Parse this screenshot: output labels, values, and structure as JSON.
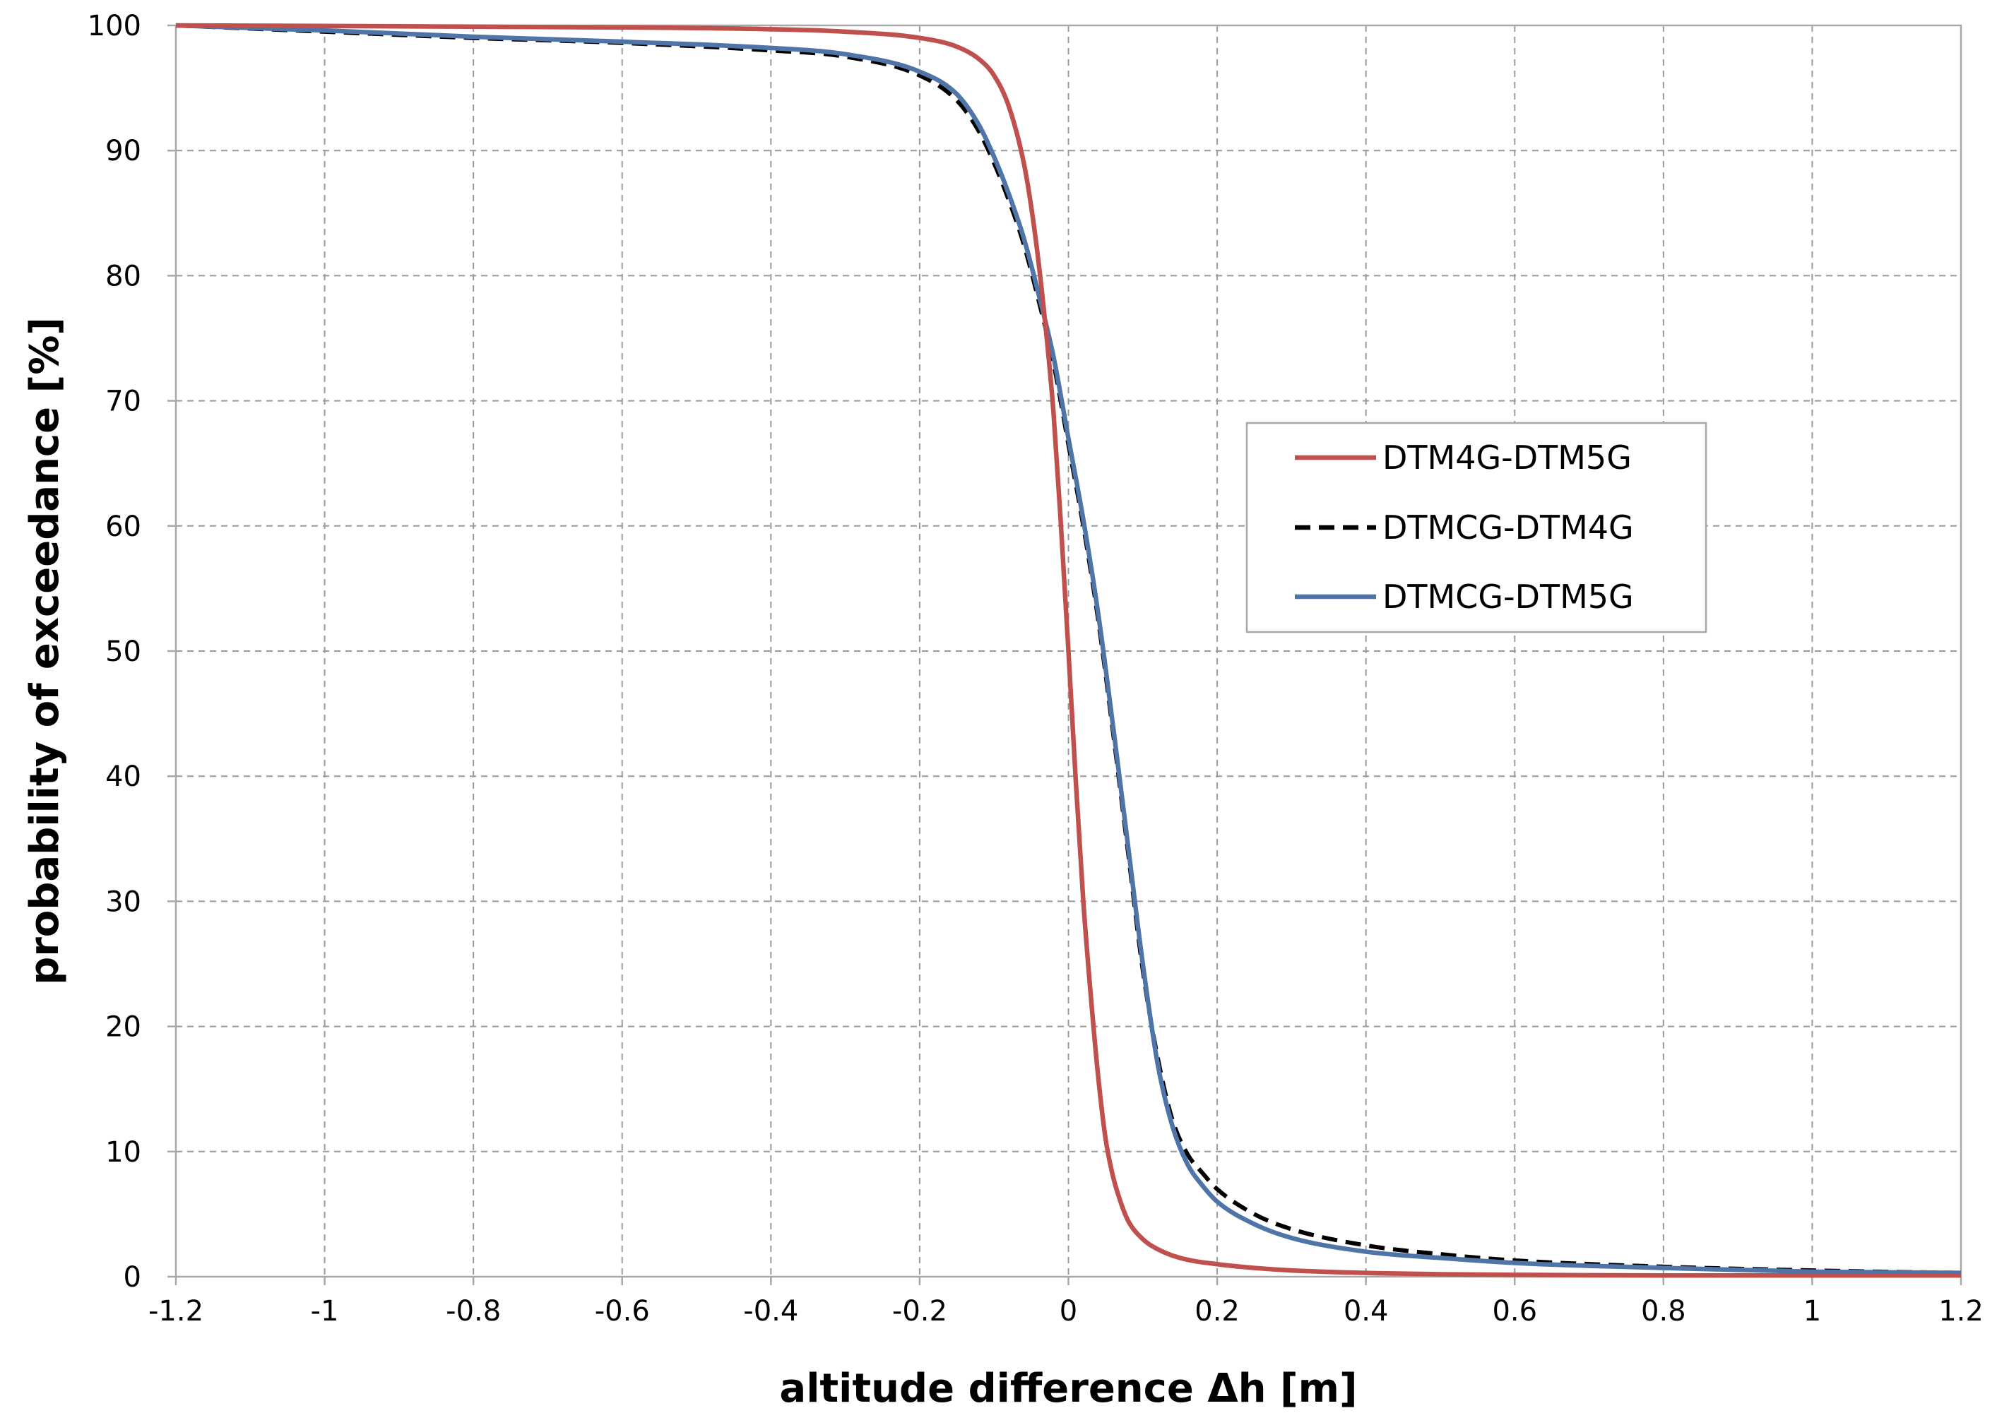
{
  "chart_data": {
    "type": "line",
    "title": "",
    "xlabel": "altitude difference Δh [m]",
    "ylabel": "probability of exceedance [%]",
    "xlim": [
      -1.2,
      1.2
    ],
    "ylim": [
      0,
      100
    ],
    "x_ticks": [
      "-1.2",
      "-1",
      "-0.8",
      "-0.6",
      "-0.4",
      "-0.2",
      "0",
      "0.2",
      "0.4",
      "0.6",
      "0.8",
      "1",
      "1.2"
    ],
    "y_ticks": [
      "0",
      "10",
      "20",
      "30",
      "40",
      "50",
      "60",
      "70",
      "80",
      "90",
      "100"
    ],
    "grid": true,
    "legend_position": "right",
    "series": [
      {
        "name": "DTM4G-DTM5G",
        "color": "#c0504d",
        "dash": "solid",
        "x": [
          -1.2,
          -0.8,
          -0.4,
          -0.3,
          -0.2,
          -0.15,
          -0.12,
          -0.1,
          -0.08,
          -0.06,
          -0.05,
          -0.04,
          -0.03,
          -0.02,
          -0.01,
          0,
          0.01,
          0.02,
          0.03,
          0.04,
          0.05,
          0.06,
          0.07,
          0.08,
          0.1,
          0.12,
          0.15,
          0.2,
          0.25,
          0.3,
          0.4,
          0.5,
          0.6,
          0.8,
          1.0,
          1.2
        ],
        "y": [
          100,
          99.9,
          99.7,
          99.5,
          99.0,
          98.3,
          97.3,
          96.0,
          93.5,
          89.0,
          85.5,
          81.0,
          75.5,
          69.0,
          60.0,
          50.0,
          39.5,
          30.0,
          22.5,
          16.0,
          11.0,
          8.0,
          6.0,
          4.5,
          3.0,
          2.2,
          1.5,
          1.0,
          0.7,
          0.5,
          0.3,
          0.2,
          0.15,
          0.1,
          0.1,
          0.1
        ]
      },
      {
        "name": "DTMCG-DTM4G",
        "color": "#000000",
        "dash": "dashed",
        "x": [
          -1.2,
          -1.0,
          -0.8,
          -0.6,
          -0.4,
          -0.3,
          -0.2,
          -0.15,
          -0.12,
          -0.1,
          -0.08,
          -0.06,
          -0.04,
          -0.02,
          0,
          0.02,
          0.04,
          0.06,
          0.08,
          0.1,
          0.12,
          0.14,
          0.16,
          0.18,
          0.2,
          0.25,
          0.3,
          0.4,
          0.5,
          0.6,
          0.8,
          1.0,
          1.2
        ],
        "y": [
          100,
          99.5,
          99.0,
          98.6,
          98.0,
          97.5,
          96.0,
          94.0,
          91.5,
          89.0,
          86.0,
          82.5,
          78.0,
          73.0,
          66.5,
          60.0,
          52.5,
          43.5,
          34.0,
          24.5,
          17.5,
          12.5,
          9.8,
          8.3,
          7.0,
          5.0,
          3.8,
          2.5,
          1.8,
          1.3,
          0.8,
          0.5,
          0.3
        ]
      },
      {
        "name": "DTMCG-DTM5G",
        "color": "#4f74a8",
        "dash": "solid",
        "x": [
          -1.2,
          -1.0,
          -0.8,
          -0.6,
          -0.4,
          -0.3,
          -0.2,
          -0.15,
          -0.12,
          -0.1,
          -0.08,
          -0.06,
          -0.04,
          -0.02,
          0,
          0.02,
          0.04,
          0.06,
          0.08,
          0.1,
          0.12,
          0.14,
          0.16,
          0.18,
          0.2,
          0.25,
          0.3,
          0.4,
          0.5,
          0.6,
          0.8,
          1.0,
          1.2
        ],
        "y": [
          100,
          99.6,
          99.1,
          98.7,
          98.2,
          97.7,
          96.3,
          94.5,
          92.0,
          89.5,
          86.5,
          83.0,
          78.5,
          73.5,
          67.0,
          60.5,
          53.0,
          44.0,
          34.5,
          25.0,
          17.0,
          12.0,
          9.0,
          7.3,
          6.0,
          4.2,
          3.1,
          2.0,
          1.5,
          1.1,
          0.7,
          0.4,
          0.3
        ]
      }
    ]
  }
}
